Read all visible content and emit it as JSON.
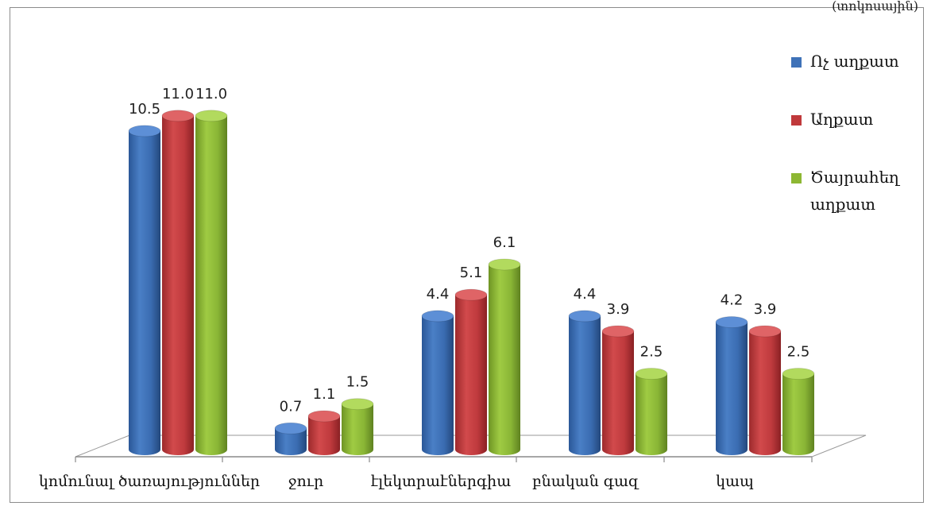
{
  "unit_note": "(տոկոսային)",
  "chart_data": {
    "type": "bar",
    "title": "",
    "xlabel": "",
    "ylabel": "",
    "ylim": [
      0,
      11.5
    ],
    "legend_position": "right",
    "grid": false,
    "categories": [
      "կոմունալ ծառայություններ",
      "ջուր",
      "էլեկտրաէներգիա",
      "բնական գազ",
      "կապ"
    ],
    "series": [
      {
        "name": "Ոչ աղքատ",
        "color": "#3f72b8",
        "values": [
          10.5,
          0.7,
          4.4,
          4.4,
          4.2
        ]
      },
      {
        "name": "Աղքատ",
        "color": "#c0393b",
        "values": [
          11.0,
          1.1,
          5.1,
          3.9,
          3.9
        ]
      },
      {
        "name": "Ծայրահեղ աղքատ",
        "color": "#8db733",
        "values": [
          11.0,
          1.5,
          6.1,
          2.5,
          2.5
        ]
      }
    ]
  }
}
